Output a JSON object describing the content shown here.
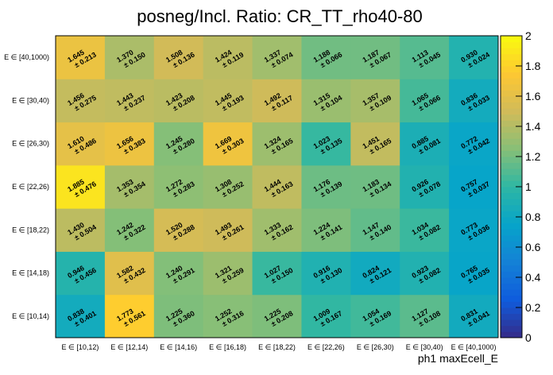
{
  "chart_data": {
    "type": "heatmap",
    "title": "posneg/Incl. Ratio: CR_TT_rho40-80",
    "xlabel": "ph1 maxEcell_E",
    "ylabel": "",
    "x_categories": [
      "E ∈ [10,12)",
      "E ∈ [12,14)",
      "E ∈ [14,16)",
      "E ∈ [16,18)",
      "E ∈ [18,22)",
      "E ∈ [22,26)",
      "E ∈ [26,30)",
      "E ∈ [30,40)",
      "E ∈ [40,1000)"
    ],
    "y_categories": [
      "E ∈ [10,14)",
      "E ∈ [14,18)",
      "E ∈ [18,22)",
      "E ∈ [22,26)",
      "E ∈ [26,30)",
      "E ∈ [30,40)",
      "E ∈ [40,1000)"
    ],
    "values": [
      [
        0.838,
        1.773,
        1.225,
        1.252,
        1.225,
        1.009,
        1.054,
        1.127,
        0.831
      ],
      [
        0.946,
        1.582,
        1.24,
        1.321,
        1.027,
        0.916,
        0.824,
        0.923,
        0.765
      ],
      [
        1.43,
        1.242,
        1.52,
        1.493,
        1.333,
        1.224,
        1.147,
        1.034,
        0.773
      ],
      [
        1.885,
        1.353,
        1.272,
        1.308,
        1.444,
        1.176,
        1.183,
        0.926,
        0.757
      ],
      [
        1.61,
        1.656,
        1.245,
        1.669,
        1.324,
        1.023,
        1.451,
        0.885,
        0.772
      ],
      [
        1.456,
        1.443,
        1.423,
        1.445,
        1.492,
        1.315,
        1.357,
        1.065,
        0.836
      ],
      [
        1.645,
        1.37,
        1.508,
        1.424,
        1.337,
        1.188,
        1.187,
        1.113,
        0.93
      ]
    ],
    "errors": [
      [
        0.401,
        0.561,
        0.36,
        0.316,
        0.208,
        0.167,
        0.169,
        0.108,
        0.041
      ],
      [
        0.456,
        0.432,
        0.291,
        0.259,
        0.15,
        0.13,
        0.121,
        0.082,
        0.035
      ],
      [
        0.504,
        0.322,
        0.288,
        0.261,
        0.162,
        0.141,
        0.14,
        0.082,
        0.036
      ],
      [
        0.476,
        0.354,
        0.283,
        0.252,
        0.163,
        0.139,
        0.134,
        0.078,
        0.037
      ],
      [
        0.486,
        0.383,
        0.28,
        0.303,
        0.165,
        0.135,
        0.165,
        0.081,
        0.042
      ],
      [
        0.275,
        0.237,
        0.208,
        0.193,
        0.117,
        0.104,
        0.109,
        0.066,
        0.033
      ],
      [
        0.213,
        0.15,
        0.136,
        0.119,
        0.074,
        0.066,
        0.067,
        0.045,
        0.024
      ]
    ],
    "zlim": [
      0,
      2
    ],
    "colorbar_ticks": [
      "0",
      "0.2",
      "0.4",
      "0.6",
      "0.8",
      "1",
      "1.2",
      "1.4",
      "1.6",
      "1.8",
      "2"
    ],
    "colormap": [
      "#352a87",
      "#0f5cdd",
      "#1481d6",
      "#06a4ca",
      "#2eb7a4",
      "#87bf77",
      "#d1bb59",
      "#fec832",
      "#f9fb0e"
    ],
    "grid": false
  }
}
